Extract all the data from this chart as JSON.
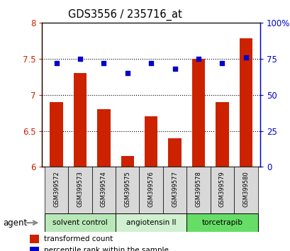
{
  "title": "GDS3556 / 235716_at",
  "samples": [
    "GSM399572",
    "GSM399573",
    "GSM399574",
    "GSM399575",
    "GSM399576",
    "GSM399577",
    "GSM399578",
    "GSM399579",
    "GSM399580"
  ],
  "bar_values": [
    6.9,
    7.3,
    6.8,
    6.15,
    6.7,
    6.4,
    7.5,
    6.9,
    7.78
  ],
  "scatter_values": [
    72,
    75,
    72,
    65,
    72,
    68,
    75,
    72,
    76
  ],
  "ylim_left": [
    6.0,
    8.0
  ],
  "ylim_right": [
    0,
    100
  ],
  "yticks_left": [
    6.0,
    6.5,
    7.0,
    7.5,
    8.0
  ],
  "yticks_right": [
    0,
    25,
    50,
    75,
    100
  ],
  "ytick_labels_left": [
    "6",
    "6.5",
    "7",
    "7.5",
    "8"
  ],
  "ytick_labels_right": [
    "0",
    "25",
    "50",
    "75",
    "100%"
  ],
  "bar_color": "#cc2200",
  "scatter_color": "#0000cc",
  "bar_bottom": 6.0,
  "groups": [
    {
      "label": "solvent control",
      "indices": [
        0,
        1,
        2
      ],
      "color": "#b8e8b8"
    },
    {
      "label": "angiotensin II",
      "indices": [
        3,
        4,
        5
      ],
      "color": "#d0f0d0"
    },
    {
      "label": "torcetrapib",
      "indices": [
        6,
        7,
        8
      ],
      "color": "#66dd66"
    }
  ],
  "agent_label": "agent",
  "legend_bar_label": "transformed count",
  "legend_scatter_label": "percentile rank within the sample",
  "panel_bg": "#d8d8d8",
  "plot_bg": "#ffffff"
}
